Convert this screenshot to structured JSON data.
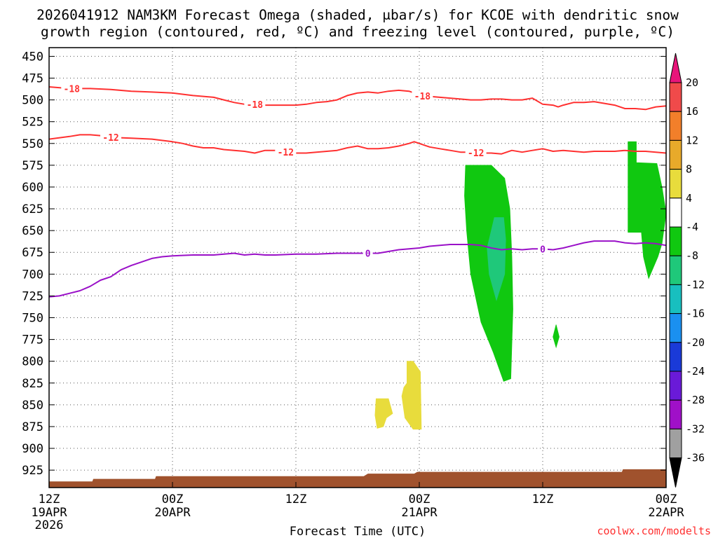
{
  "chart_data": {
    "type": "heatmap",
    "title": {
      "line1": "2026041912 NAM3KM Forecast Omega (shaded, μbar/s) for KCOE with dendritic snow",
      "line2": "growth region (contoured, red, ºC) and freezing level (contoured, purple, ºC)"
    },
    "xlabel": "Forecast Time (UTC)",
    "credit": "coolwx.com/modelts",
    "x_hours_range": [
      0,
      60
    ],
    "y_pressure_range": [
      440,
      945
    ],
    "y_ticks": [
      450,
      475,
      500,
      525,
      550,
      575,
      600,
      625,
      650,
      675,
      700,
      725,
      750,
      775,
      800,
      825,
      850,
      875,
      900,
      925
    ],
    "x_ticks": [
      {
        "hour": 0,
        "time": "12Z",
        "date": "19APR",
        "year": "2026"
      },
      {
        "hour": 12,
        "time": "00Z",
        "date": "20APR",
        "year": ""
      },
      {
        "hour": 24,
        "time": "12Z",
        "date": "",
        "year": ""
      },
      {
        "hour": 36,
        "time": "00Z",
        "date": "21APR",
        "year": ""
      },
      {
        "hour": 48,
        "time": "12Z",
        "date": "",
        "year": ""
      },
      {
        "hour": 60,
        "time": "00Z",
        "date": "22APR",
        "year": ""
      }
    ],
    "colorbar": {
      "labels": [
        "20",
        "16",
        "12",
        "8",
        "4",
        "-4",
        "-8",
        "-12",
        "-16",
        "-20",
        "-24",
        "-28",
        "-32",
        "-36"
      ],
      "colors": [
        "#e8157a",
        "#f04a4a",
        "#f27f2a",
        "#e8aa2a",
        "#e8dc3c",
        "#ffffff",
        "#10c810",
        "#1fc87a",
        "#18bfbf",
        "#1a90f0",
        "#1a3ad8",
        "#6a1ad8",
        "#a010c8",
        "#a0a0a0",
        "#000000"
      ]
    },
    "series": [
      {
        "name": "-18 C isotherm",
        "color": "#ff3030",
        "label": "-18",
        "label_hours": [
          2.2,
          20.0,
          36.3
        ],
        "points": [
          [
            0,
            485
          ],
          [
            2,
            487
          ],
          [
            4,
            487
          ],
          [
            6,
            488
          ],
          [
            8,
            490
          ],
          [
            10,
            491
          ],
          [
            12,
            492
          ],
          [
            14,
            495
          ],
          [
            16,
            497
          ],
          [
            17,
            500
          ],
          [
            18,
            503
          ],
          [
            19,
            505
          ],
          [
            20,
            505
          ],
          [
            21,
            506
          ],
          [
            22,
            506
          ],
          [
            24,
            506
          ],
          [
            25,
            505
          ],
          [
            26,
            503
          ],
          [
            27,
            502
          ],
          [
            28,
            500
          ],
          [
            29,
            495
          ],
          [
            30,
            492
          ],
          [
            31,
            491
          ],
          [
            32,
            492
          ],
          [
            33,
            490
          ],
          [
            34,
            489
          ],
          [
            35,
            490
          ],
          [
            35.5,
            492
          ],
          [
            36,
            495
          ],
          [
            37,
            496
          ],
          [
            38,
            497
          ],
          [
            39,
            498
          ],
          [
            40,
            499
          ],
          [
            41,
            500
          ],
          [
            42,
            500
          ],
          [
            43,
            499
          ],
          [
            44,
            499
          ],
          [
            45,
            500
          ],
          [
            46,
            500
          ],
          [
            47,
            498
          ],
          [
            48,
            505
          ],
          [
            49,
            506
          ],
          [
            49.5,
            508
          ],
          [
            50,
            506
          ],
          [
            51,
            503
          ],
          [
            52,
            503
          ],
          [
            53,
            502
          ],
          [
            54,
            504
          ],
          [
            55,
            506
          ],
          [
            56,
            510
          ],
          [
            57,
            510
          ],
          [
            58,
            511
          ],
          [
            59,
            508
          ],
          [
            60,
            507
          ]
        ]
      },
      {
        "name": "-12 C isotherm",
        "color": "#ff3030",
        "label": "-12",
        "label_hours": [
          6.0,
          23.0,
          41.5
        ],
        "points": [
          [
            0,
            545
          ],
          [
            2,
            542
          ],
          [
            3,
            540
          ],
          [
            4,
            540
          ],
          [
            5,
            541
          ],
          [
            6,
            543
          ],
          [
            8,
            544
          ],
          [
            10,
            545
          ],
          [
            12,
            548
          ],
          [
            13,
            550
          ],
          [
            14,
            553
          ],
          [
            15,
            555
          ],
          [
            16,
            555
          ],
          [
            17,
            557
          ],
          [
            18,
            558
          ],
          [
            19,
            559
          ],
          [
            20,
            561
          ],
          [
            21,
            558
          ],
          [
            22,
            558
          ],
          [
            23,
            560
          ],
          [
            24,
            561
          ],
          [
            25,
            561
          ],
          [
            26,
            560
          ],
          [
            27,
            559
          ],
          [
            28,
            558
          ],
          [
            29,
            555
          ],
          [
            30,
            553
          ],
          [
            31,
            556
          ],
          [
            32,
            556
          ],
          [
            33,
            555
          ],
          [
            34,
            553
          ],
          [
            35,
            550
          ],
          [
            35.5,
            548
          ],
          [
            36,
            550
          ],
          [
            37,
            554
          ],
          [
            38,
            556
          ],
          [
            39,
            558
          ],
          [
            40,
            560
          ],
          [
            41,
            560
          ],
          [
            42,
            561
          ],
          [
            43,
            561
          ],
          [
            44,
            562
          ],
          [
            45,
            558
          ],
          [
            46,
            560
          ],
          [
            47,
            558
          ],
          [
            48,
            556
          ],
          [
            49,
            559
          ],
          [
            50,
            558
          ],
          [
            51,
            559
          ],
          [
            52,
            560
          ],
          [
            53,
            559
          ],
          [
            54,
            559
          ],
          [
            55,
            559
          ],
          [
            56,
            558
          ],
          [
            57,
            559
          ],
          [
            58,
            559
          ],
          [
            59,
            560
          ],
          [
            60,
            561
          ]
        ]
      },
      {
        "name": "0 C freezing level",
        "color": "#9a10c8",
        "label": "0",
        "label_hours": [
          31.0,
          48.0
        ],
        "points": [
          [
            0,
            726
          ],
          [
            1,
            725
          ],
          [
            2,
            722
          ],
          [
            3,
            719
          ],
          [
            4,
            714
          ],
          [
            5,
            707
          ],
          [
            6,
            703
          ],
          [
            7,
            695
          ],
          [
            8,
            690
          ],
          [
            9,
            686
          ],
          [
            10,
            682
          ],
          [
            11,
            680
          ],
          [
            12,
            679
          ],
          [
            14,
            678
          ],
          [
            16,
            678
          ],
          [
            17,
            677
          ],
          [
            18,
            676
          ],
          [
            19,
            678
          ],
          [
            20,
            677
          ],
          [
            21,
            678
          ],
          [
            22,
            678
          ],
          [
            24,
            677
          ],
          [
            26,
            677
          ],
          [
            28,
            676
          ],
          [
            30,
            676
          ],
          [
            32,
            676
          ],
          [
            33,
            674
          ],
          [
            34,
            672
          ],
          [
            35,
            671
          ],
          [
            36,
            670
          ],
          [
            37,
            668
          ],
          [
            38,
            667
          ],
          [
            39,
            666
          ],
          [
            40,
            666
          ],
          [
            41,
            666
          ],
          [
            42,
            667
          ],
          [
            43,
            670
          ],
          [
            44,
            672
          ],
          [
            45,
            671
          ],
          [
            46,
            672
          ],
          [
            47,
            671
          ],
          [
            48,
            671
          ],
          [
            49,
            672
          ],
          [
            50,
            670
          ],
          [
            51,
            667
          ],
          [
            52,
            664
          ],
          [
            53,
            662
          ],
          [
            54,
            662
          ],
          [
            55,
            662
          ],
          [
            56,
            664
          ],
          [
            57,
            665
          ],
          [
            58,
            664
          ],
          [
            59,
            665
          ],
          [
            60,
            667
          ]
        ]
      }
    ],
    "omega_regions": [
      {
        "level": "-8 to -4",
        "color": "#10c810",
        "points": [
          [
            40.5,
            575
          ],
          [
            43.0,
            575
          ],
          [
            44.3,
            590
          ],
          [
            44.8,
            625
          ],
          [
            45.0,
            680
          ],
          [
            45.1,
            740
          ],
          [
            45.0,
            780
          ],
          [
            44.9,
            820
          ],
          [
            44.2,
            823
          ],
          [
            43.2,
            790
          ],
          [
            42.0,
            755
          ],
          [
            41.0,
            700
          ],
          [
            40.6,
            650
          ],
          [
            40.4,
            610
          ]
        ]
      },
      {
        "level": "-12 to -8",
        "color": "#1fc87a",
        "points": [
          [
            43.3,
            635
          ],
          [
            44.2,
            635
          ],
          [
            44.4,
            660
          ],
          [
            44.3,
            700
          ],
          [
            43.5,
            730
          ],
          [
            42.8,
            700
          ],
          [
            42.6,
            670
          ]
        ]
      },
      {
        "level": "-8 to -4",
        "color": "#10c810",
        "points": [
          [
            56.3,
            548
          ],
          [
            57.1,
            548
          ],
          [
            57.1,
            572
          ],
          [
            59.1,
            573
          ],
          [
            59.6,
            600
          ],
          [
            60.0,
            630
          ],
          [
            59.6,
            665
          ],
          [
            59.2,
            680
          ],
          [
            58.3,
            705
          ],
          [
            57.8,
            680
          ],
          [
            57.6,
            652
          ],
          [
            56.3,
            652
          ]
        ]
      },
      {
        "level": "-8 to -4",
        "color": "#10c810",
        "points": [
          [
            49.3,
            758
          ],
          [
            49.6,
            772
          ],
          [
            49.3,
            784
          ],
          [
            49.0,
            772
          ]
        ]
      },
      {
        "level": "4 to 8",
        "color": "#e8dc3c",
        "points": [
          [
            31.8,
            843
          ],
          [
            33.0,
            843
          ],
          [
            33.4,
            860
          ],
          [
            32.8,
            865
          ],
          [
            32.5,
            875
          ],
          [
            31.9,
            877
          ],
          [
            31.7,
            862
          ]
        ]
      },
      {
        "level": "4 to 8",
        "color": "#e8dc3c",
        "points": [
          [
            34.8,
            800
          ],
          [
            35.4,
            800
          ],
          [
            36.1,
            812
          ],
          [
            36.2,
            878
          ],
          [
            35.4,
            878
          ],
          [
            34.6,
            865
          ],
          [
            34.3,
            840
          ],
          [
            34.5,
            830
          ],
          [
            34.8,
            825
          ]
        ]
      }
    ],
    "terrain": {
      "color": "#a0522d",
      "points": [
        [
          0,
          938
        ],
        [
          4.2,
          938
        ],
        [
          4.3,
          935
        ],
        [
          10.3,
          935
        ],
        [
          10.4,
          932
        ],
        [
          30.6,
          932
        ],
        [
          31.0,
          929
        ],
        [
          35.5,
          929
        ],
        [
          35.8,
          927
        ],
        [
          55.7,
          927
        ],
        [
          55.8,
          924
        ],
        [
          60,
          924
        ]
      ]
    }
  }
}
